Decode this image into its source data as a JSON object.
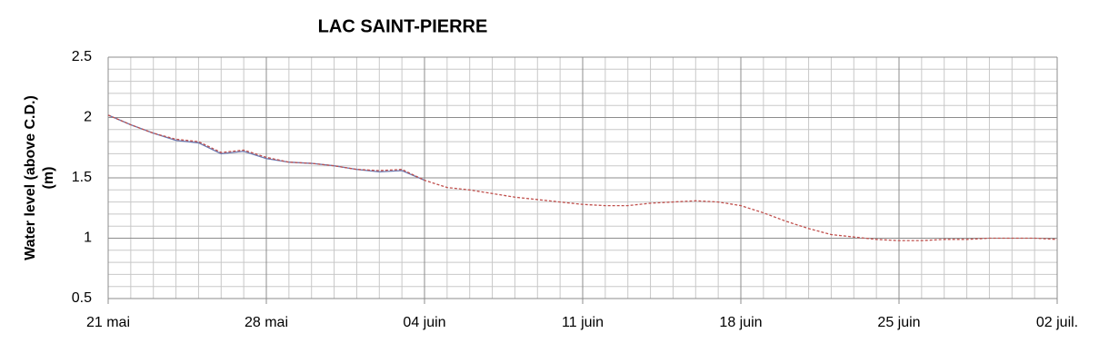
{
  "chart_data": {
    "type": "line",
    "title": "LAC SAINT-PIERRE",
    "y_label_lines": [
      "Water level (above C.D.)",
      "(m)"
    ],
    "x": [
      0,
      1,
      2,
      3,
      4,
      5,
      6,
      7,
      8,
      9,
      10,
      11,
      12,
      13,
      14,
      15,
      16,
      17,
      18,
      19,
      20,
      21,
      22,
      23,
      24,
      25,
      26,
      27,
      28,
      29,
      30,
      31,
      32,
      33,
      34,
      35,
      36,
      37,
      38,
      39,
      40,
      41,
      42
    ],
    "series": [
      {
        "color": "#6a78b0",
        "dash": false,
        "values": [
          2.02,
          1.94,
          1.87,
          1.81,
          1.79,
          1.7,
          1.72,
          1.66,
          1.63,
          1.62,
          1.6,
          1.57,
          1.55,
          1.56,
          1.48,
          null,
          null,
          null,
          null,
          null,
          null,
          null,
          null,
          null,
          null,
          null,
          null,
          null,
          null,
          null,
          null,
          null,
          null,
          null,
          null,
          null,
          null,
          null,
          null,
          null,
          null,
          null,
          null
        ]
      },
      {
        "color": "#c0504d",
        "dash": true,
        "values": [
          2.02,
          1.94,
          1.87,
          1.82,
          1.8,
          1.71,
          1.73,
          1.67,
          1.63,
          1.62,
          1.6,
          1.57,
          1.56,
          1.57,
          1.48,
          1.42,
          1.4,
          1.37,
          1.34,
          1.32,
          1.3,
          1.28,
          1.27,
          1.27,
          1.29,
          1.3,
          1.31,
          1.3,
          1.27,
          1.21,
          1.14,
          1.08,
          1.03,
          1.01,
          0.99,
          0.98,
          0.98,
          0.99,
          0.99,
          1.0,
          1.0,
          1.0,
          0.99
        ]
      }
    ],
    "xlim": [
      0,
      42
    ],
    "xticks": [
      {
        "value": 0,
        "label": "21 mai"
      },
      {
        "value": 7,
        "label": "28 mai"
      },
      {
        "value": 14,
        "label": "04 juin"
      },
      {
        "value": 21,
        "label": "11 juin"
      },
      {
        "value": 28,
        "label": "18 juin"
      },
      {
        "value": 35,
        "label": "25 juin"
      },
      {
        "value": 42,
        "label": "02 juil."
      }
    ],
    "xminorticks": [
      1,
      2,
      3,
      4,
      5,
      6,
      8,
      9,
      10,
      11,
      12,
      13,
      15,
      16,
      17,
      18,
      19,
      20,
      22,
      23,
      24,
      25,
      26,
      27,
      29,
      30,
      31,
      32,
      33,
      34,
      36,
      37,
      38,
      39,
      40,
      41
    ],
    "ylim": [
      0.5,
      2.5
    ],
    "yticks": [
      0.5,
      1,
      1.5,
      2,
      2.5
    ],
    "yminorticks": [
      0.6,
      0.7,
      0.8,
      0.9,
      1.1,
      1.2,
      1.3,
      1.4,
      1.6,
      1.7,
      1.8,
      1.9,
      2.1,
      2.2,
      2.3,
      2.4
    ],
    "grid": true
  }
}
